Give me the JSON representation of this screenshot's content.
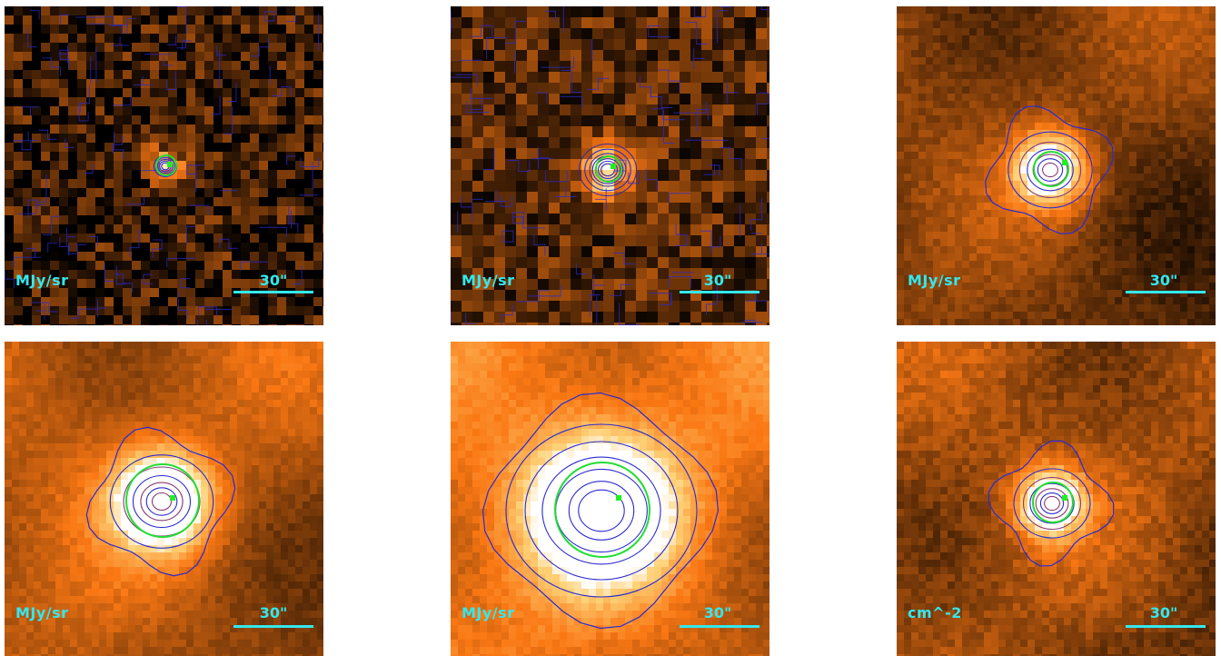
{
  "colors": {
    "background": "#ffffff",
    "label_cyan": "#33e8ee",
    "contour_blue": "#2a2ad0",
    "aperture_green": "#22dd33",
    "peak_green": "#22ee22"
  },
  "panels": [
    {
      "unit_label": "MJy/sr",
      "scalebar_label": "30\"",
      "style": "noisy-fine"
    },
    {
      "unit_label": "MJy/sr",
      "scalebar_label": "30\"",
      "style": "noisy-coarse"
    },
    {
      "unit_label": "MJy/sr",
      "scalebar_label": "30\"",
      "style": "smooth-faint"
    },
    {
      "unit_label": "MJy/sr",
      "scalebar_label": "30\"",
      "style": "smooth-bright"
    },
    {
      "unit_label": "MJy/sr",
      "scalebar_label": "30\"",
      "style": "smooth-wide"
    },
    {
      "unit_label": "cm^-2",
      "scalebar_label": "30\"",
      "style": "smooth-column"
    }
  ]
}
